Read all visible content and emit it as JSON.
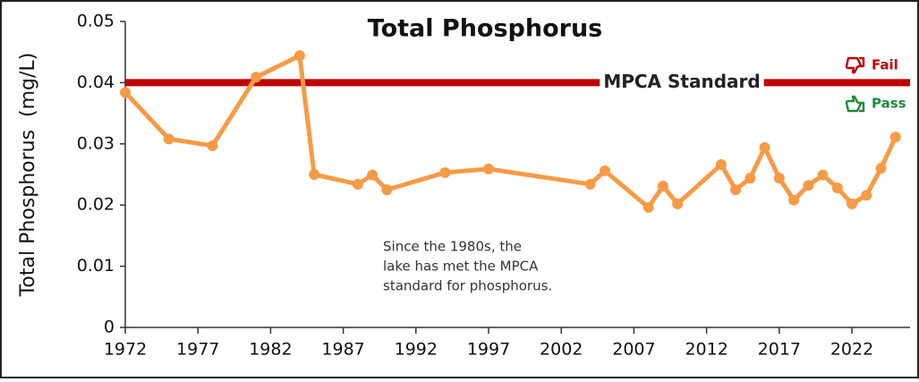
{
  "chart_data": {
    "type": "line",
    "title": "Total Phosphorus",
    "y_label": "Total Phosphorus  (mg/L)",
    "x": [
      1972,
      1975,
      1978,
      1981,
      1984,
      1985,
      1988,
      1989,
      1990,
      1994,
      1997,
      2004,
      2005,
      2008,
      2009,
      2010,
      2013,
      2014,
      2015,
      2016,
      2017,
      2018,
      2019,
      2020,
      2021,
      2022,
      2023,
      2024,
      2025
    ],
    "series": [
      {
        "name": "Total Phosphorus",
        "color": "#f79a46",
        "values": [
          0.0384,
          0.0308,
          0.0297,
          0.0409,
          0.0444,
          0.025,
          0.0234,
          0.0249,
          0.0225,
          0.0253,
          0.0259,
          0.0234,
          0.0256,
          0.0196,
          0.0231,
          0.0202,
          0.0266,
          0.0225,
          0.0244,
          0.0294,
          0.0244,
          0.0208,
          0.0232,
          0.0249,
          0.0228,
          0.0202,
          0.0216,
          0.026,
          0.0311
        ]
      }
    ],
    "xlim": [
      1972,
      2026
    ],
    "xticks": [
      1972,
      1977,
      1982,
      1987,
      1992,
      1997,
      2002,
      2007,
      2012,
      2017,
      2022
    ],
    "ylim": [
      0,
      0.05
    ],
    "yticks": [
      0,
      0.01,
      0.02,
      0.03,
      0.04,
      0.05
    ],
    "standard": {
      "value": 0.04,
      "label": "MPCA Standard",
      "color": "#c00000"
    },
    "fail_label": "Fail",
    "pass_label": "Pass",
    "annotation": [
      "Since the 1980s, the",
      "lake has met the MPCA",
      "standard for phosphorus."
    ]
  }
}
